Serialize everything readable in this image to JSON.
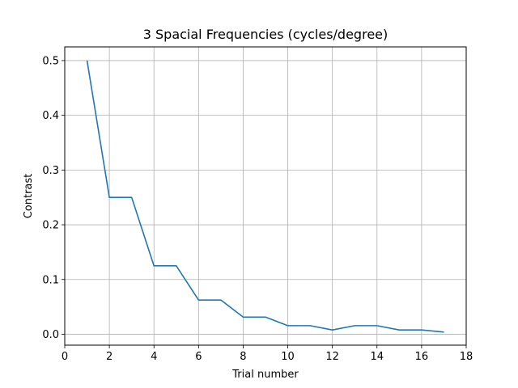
{
  "chart_data": {
    "type": "line",
    "title": "3 Spacial Frequencies (cycles/degree)",
    "xlabel": "Trial number",
    "ylabel": "Contrast",
    "xlim": [
      0,
      18
    ],
    "ylim": [
      -0.02,
      0.525
    ],
    "xticks": [
      0,
      2,
      4,
      6,
      8,
      10,
      12,
      14,
      16,
      18
    ],
    "yticks": [
      0.0,
      0.1,
      0.2,
      0.3,
      0.4,
      0.5
    ],
    "xtick_labels": [
      "0",
      "2",
      "4",
      "6",
      "8",
      "10",
      "12",
      "14",
      "16",
      "18"
    ],
    "ytick_labels": [
      "0.0",
      "0.1",
      "0.2",
      "0.3",
      "0.4",
      "0.5"
    ],
    "grid": true,
    "series": [
      {
        "color": "#1f77b4",
        "x": [
          1,
          2,
          3,
          4,
          5,
          6,
          7,
          8,
          9,
          10,
          11,
          12,
          13,
          14,
          15,
          16,
          17
        ],
        "y": [
          0.5,
          0.25,
          0.25,
          0.125,
          0.125,
          0.0625,
          0.0625,
          0.03125,
          0.03125,
          0.015625,
          0.015625,
          0.0078125,
          0.015625,
          0.015625,
          0.0078125,
          0.0078125,
          0.00390625
        ]
      }
    ]
  }
}
